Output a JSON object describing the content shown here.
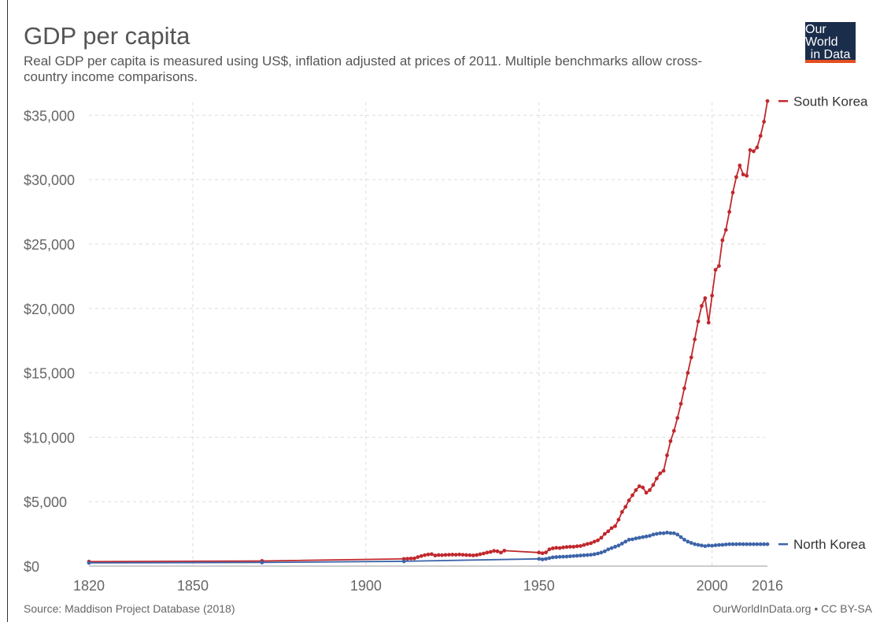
{
  "header": {
    "title": "GDP per capita",
    "subtitle": "Real GDP per capita is measured using US$, inflation adjusted at prices of 2011. Multiple benchmarks allow cross-country income comparisons."
  },
  "logo": {
    "line1": "Our World",
    "line2": "in Data",
    "bg_color": "#1a2d4a",
    "accent_color": "#e44e1f"
  },
  "footer": {
    "source": "Source: Maddison Project Database (2018)",
    "credit": "OurWorldInData.org • CC BY-SA"
  },
  "chart_data": {
    "type": "line",
    "title": "GDP per capita",
    "xlim": [
      1820,
      2016
    ],
    "ylim": [
      0,
      36000
    ],
    "grid": true,
    "x_ticks": [
      {
        "value": 1820,
        "label": "1820"
      },
      {
        "value": 1850,
        "label": "1850"
      },
      {
        "value": 1900,
        "label": "1900"
      },
      {
        "value": 1950,
        "label": "1950"
      },
      {
        "value": 2000,
        "label": "2000"
      },
      {
        "value": 2016,
        "label": "2016"
      }
    ],
    "y_ticks": [
      {
        "value": 0,
        "label": "$0"
      },
      {
        "value": 5000,
        "label": "$5,000"
      },
      {
        "value": 10000,
        "label": "$10,000"
      },
      {
        "value": 15000,
        "label": "$15,000"
      },
      {
        "value": 20000,
        "label": "$20,000"
      },
      {
        "value": 25000,
        "label": "$25,000"
      },
      {
        "value": 30000,
        "label": "$30,000"
      },
      {
        "value": 35000,
        "label": "$35,000"
      }
    ],
    "series": [
      {
        "name": "South Korea",
        "color": "#c0282d",
        "points": [
          [
            1820,
            350
          ],
          [
            1870,
            400
          ],
          [
            1911,
            560
          ],
          [
            1912,
            570
          ],
          [
            1913,
            590
          ],
          [
            1914,
            600
          ],
          [
            1915,
            700
          ],
          [
            1916,
            780
          ],
          [
            1917,
            850
          ],
          [
            1918,
            900
          ],
          [
            1919,
            930
          ],
          [
            1920,
            820
          ],
          [
            1921,
            860
          ],
          [
            1922,
            850
          ],
          [
            1923,
            870
          ],
          [
            1924,
            880
          ],
          [
            1925,
            890
          ],
          [
            1926,
            880
          ],
          [
            1927,
            900
          ],
          [
            1928,
            880
          ],
          [
            1929,
            860
          ],
          [
            1930,
            850
          ],
          [
            1931,
            830
          ],
          [
            1932,
            860
          ],
          [
            1933,
            920
          ],
          [
            1934,
            980
          ],
          [
            1935,
            1050
          ],
          [
            1936,
            1100
          ],
          [
            1937,
            1180
          ],
          [
            1938,
            1150
          ],
          [
            1939,
            1050
          ],
          [
            1940,
            1200
          ],
          [
            1950,
            1050
          ],
          [
            1951,
            1000
          ],
          [
            1952,
            1060
          ],
          [
            1953,
            1300
          ],
          [
            1954,
            1380
          ],
          [
            1955,
            1420
          ],
          [
            1956,
            1400
          ],
          [
            1957,
            1450
          ],
          [
            1958,
            1480
          ],
          [
            1959,
            1500
          ],
          [
            1960,
            1500
          ],
          [
            1961,
            1540
          ],
          [
            1962,
            1560
          ],
          [
            1963,
            1640
          ],
          [
            1964,
            1720
          ],
          [
            1965,
            1780
          ],
          [
            1966,
            1900
          ],
          [
            1967,
            2000
          ],
          [
            1968,
            2200
          ],
          [
            1969,
            2500
          ],
          [
            1970,
            2700
          ],
          [
            1971,
            2950
          ],
          [
            1972,
            3100
          ],
          [
            1973,
            3600
          ],
          [
            1974,
            4200
          ],
          [
            1975,
            4600
          ],
          [
            1976,
            5100
          ],
          [
            1977,
            5500
          ],
          [
            1978,
            5900
          ],
          [
            1979,
            6200
          ],
          [
            1980,
            6100
          ],
          [
            1981,
            5700
          ],
          [
            1982,
            5900
          ],
          [
            1983,
            6300
          ],
          [
            1984,
            6800
          ],
          [
            1985,
            7200
          ],
          [
            1986,
            7400
          ],
          [
            1987,
            8600
          ],
          [
            1988,
            9700
          ],
          [
            1989,
            10500
          ],
          [
            1990,
            11500
          ],
          [
            1991,
            12600
          ],
          [
            1992,
            13800
          ],
          [
            1993,
            15000
          ],
          [
            1994,
            16200
          ],
          [
            1995,
            17600
          ],
          [
            1996,
            19000
          ],
          [
            1997,
            20200
          ],
          [
            1998,
            20800
          ],
          [
            1999,
            18900
          ],
          [
            2000,
            21000
          ],
          [
            2001,
            23000
          ],
          [
            2002,
            23300
          ],
          [
            2003,
            25300
          ],
          [
            2004,
            26100
          ],
          [
            2005,
            27500
          ],
          [
            2006,
            29000
          ],
          [
            2007,
            30200
          ],
          [
            2008,
            31100
          ],
          [
            2009,
            30400
          ],
          [
            2010,
            30300
          ],
          [
            2011,
            32300
          ],
          [
            2012,
            32200
          ],
          [
            2013,
            32500
          ],
          [
            2014,
            33400
          ],
          [
            2015,
            34500
          ],
          [
            2016,
            36100
          ]
        ]
      },
      {
        "name": "North Korea",
        "color": "#3d64a8",
        "points": [
          [
            1820,
            250
          ],
          [
            1870,
            280
          ],
          [
            1911,
            370
          ],
          [
            1950,
            560
          ],
          [
            1951,
            520
          ],
          [
            1952,
            560
          ],
          [
            1953,
            620
          ],
          [
            1954,
            680
          ],
          [
            1955,
            700
          ],
          [
            1956,
            720
          ],
          [
            1957,
            730
          ],
          [
            1958,
            740
          ],
          [
            1959,
            760
          ],
          [
            1960,
            780
          ],
          [
            1961,
            800
          ],
          [
            1962,
            820
          ],
          [
            1963,
            840
          ],
          [
            1964,
            860
          ],
          [
            1965,
            880
          ],
          [
            1966,
            920
          ],
          [
            1967,
            980
          ],
          [
            1968,
            1050
          ],
          [
            1969,
            1150
          ],
          [
            1970,
            1300
          ],
          [
            1971,
            1400
          ],
          [
            1972,
            1500
          ],
          [
            1973,
            1600
          ],
          [
            1974,
            1750
          ],
          [
            1975,
            1900
          ],
          [
            1976,
            2050
          ],
          [
            1977,
            2080
          ],
          [
            1978,
            2150
          ],
          [
            1979,
            2200
          ],
          [
            1980,
            2250
          ],
          [
            1981,
            2300
          ],
          [
            1982,
            2350
          ],
          [
            1983,
            2450
          ],
          [
            1984,
            2500
          ],
          [
            1985,
            2550
          ],
          [
            1986,
            2550
          ],
          [
            1987,
            2600
          ],
          [
            1988,
            2560
          ],
          [
            1989,
            2550
          ],
          [
            1990,
            2450
          ],
          [
            1991,
            2250
          ],
          [
            1992,
            2050
          ],
          [
            1993,
            1900
          ],
          [
            1994,
            1800
          ],
          [
            1995,
            1700
          ],
          [
            1996,
            1650
          ],
          [
            1997,
            1600
          ],
          [
            1998,
            1550
          ],
          [
            1999,
            1600
          ],
          [
            2000,
            1580
          ],
          [
            2001,
            1620
          ],
          [
            2002,
            1640
          ],
          [
            2003,
            1650
          ],
          [
            2004,
            1680
          ],
          [
            2005,
            1700
          ],
          [
            2006,
            1700
          ],
          [
            2007,
            1700
          ],
          [
            2008,
            1710
          ],
          [
            2009,
            1700
          ],
          [
            2010,
            1700
          ],
          [
            2011,
            1700
          ],
          [
            2012,
            1700
          ],
          [
            2013,
            1700
          ],
          [
            2014,
            1700
          ],
          [
            2015,
            1700
          ],
          [
            2016,
            1700
          ]
        ]
      }
    ]
  }
}
